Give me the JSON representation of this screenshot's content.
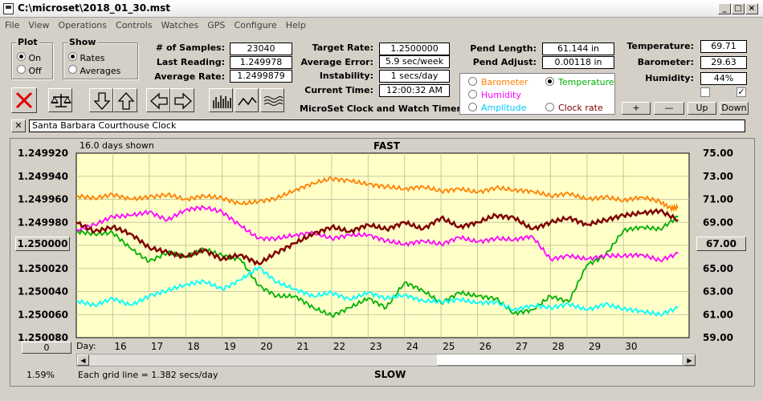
{
  "window": {
    "title": "C:\\microset\\2018_01_30.mst"
  },
  "menu": [
    "File",
    "View",
    "Operations",
    "Controls",
    "Watches",
    "GPS",
    "Configure",
    "Help"
  ],
  "plot_group": {
    "title": "Plot",
    "on": "On",
    "off": "Off",
    "selected": "On"
  },
  "show_group": {
    "title": "Show",
    "rates": "Rates",
    "averages": "Averages",
    "selected": "Rates"
  },
  "stats": {
    "samples_label": "# of Samples:",
    "samples": "23040",
    "last_reading_label": "Last Reading:",
    "last_reading": "1.249978",
    "average_rate_label": "Average Rate:",
    "average_rate": "1.2499879",
    "target_rate_label": "Target Rate:",
    "target_rate": "1.2500000",
    "average_error_label": "Average Error:",
    "average_error": "5.9 sec/week",
    "instability_label": "Instability:",
    "instability": "1 secs/day",
    "current_time_label": "Current Time:",
    "current_time": "12:00:32 AM",
    "pend_length_label": "Pend Length:",
    "pend_length": "61.144 in",
    "pend_adjust_label": "Pend Adjust:",
    "pend_adjust": "0.00118 in",
    "temperature_label": "Temperature:",
    "temperature": "69.71",
    "barometer_label": "Barometer:",
    "barometer": "29.63",
    "humidity_label": "Humidity:",
    "humidity": "44%"
  },
  "app_caption": "MicroSet Clock and Watch Timer",
  "legend": {
    "barometer": "Barometer",
    "temperature": "Temperature",
    "humidity": "Humidity",
    "amplitude": "Amplitude",
    "clock_rate": "Clock rate",
    "selected": "Temperature"
  },
  "adjust_buttons": {
    "plus": "+",
    "minus": "—",
    "up": "Up",
    "down": "Down"
  },
  "clock_name": "Santa Barbara Courthouse Clock",
  "colors": {
    "chart_bg": "#ffffc8",
    "grid": "#000000",
    "barometer": "#ff8000",
    "temperature": "#00b000",
    "humidity": "#ff00ff",
    "amplitude": "#00ffff",
    "clock_rate": "#800000"
  },
  "chart": {
    "days_shown": "16.0 days shown",
    "top_label": "FAST",
    "bottom_label": "SLOW",
    "day_label": "Day:",
    "grid_note": "Each grid line = 1.382 secs/day",
    "left_box": "1.250000",
    "right_box": "67.00",
    "left_button": "0",
    "percent": "1.59%"
  },
  "chart_data": {
    "type": "line",
    "x_label": "Day:",
    "x_ticks": [
      "16",
      "17",
      "18",
      "19",
      "20",
      "21",
      "22",
      "23",
      "24",
      "25",
      "26",
      "27",
      "28",
      "29",
      "30"
    ],
    "xlim": [
      15,
      31.8
    ],
    "y_left_ticks": [
      "1.249920",
      "1.249940",
      "1.249960",
      "1.249980",
      "1.250000",
      "1.250020",
      "1.250040",
      "1.250060",
      "1.250080"
    ],
    "y_left_range": [
      1.25008,
      1.24992
    ],
    "y_right_ticks": [
      "75.00",
      "73.00",
      "71.00",
      "69.00",
      "67.00",
      "65.00",
      "63.00",
      "61.00",
      "59.00"
    ],
    "y_right_range": [
      59,
      75
    ],
    "series": [
      {
        "name": "Barometer",
        "x": [
          15,
          15.5,
          16,
          16.5,
          17,
          17.5,
          18,
          18.5,
          19,
          19.5,
          20,
          20.5,
          21,
          21.5,
          22,
          22.5,
          23,
          23.5,
          24,
          24.5,
          25,
          25.5,
          26,
          26.5,
          27,
          27.5,
          28,
          28.5,
          29,
          29.5,
          30,
          30.5,
          31,
          31.3,
          31.5
        ],
        "y": [
          71.3,
          71.1,
          71.4,
          71.0,
          71.2,
          71.4,
          71.0,
          71.3,
          71.1,
          70.6,
          70.8,
          71.1,
          71.8,
          72.4,
          72.8,
          72.6,
          72.3,
          72.1,
          71.9,
          72.1,
          71.7,
          71.9,
          71.6,
          72.0,
          71.8,
          71.7,
          71.3,
          71.5,
          71.0,
          71.2,
          70.9,
          71.2,
          70.8,
          70.2,
          70.3
        ]
      },
      {
        "name": "Temperature",
        "x": [
          15,
          15.5,
          16,
          16.5,
          17,
          17.5,
          18,
          18.5,
          19,
          19.5,
          20,
          20.5,
          21,
          21.5,
          22,
          22.5,
          23,
          23.5,
          24,
          24.5,
          25,
          25.5,
          26,
          26.5,
          27,
          27.5,
          28,
          28.5,
          29,
          29.5,
          30,
          30.5,
          31,
          31.5
        ],
        "y": [
          68.2,
          68.0,
          68.1,
          66.7,
          65.6,
          66.4,
          66.0,
          66.7,
          66.1,
          65.8,
          63.5,
          62.6,
          62.6,
          61.6,
          60.9,
          61.6,
          62.4,
          61.6,
          63.8,
          63.1,
          62.0,
          62.9,
          62.6,
          62.4,
          61.1,
          61.4,
          62.6,
          62.1,
          65.3,
          66.1,
          68.3,
          68.6,
          68.4,
          69.5
        ]
      },
      {
        "name": "Humidity",
        "x": [
          15,
          15.5,
          16,
          16.5,
          17,
          17.5,
          18,
          18.5,
          19,
          19.5,
          20,
          20.5,
          21,
          21.5,
          22,
          22.5,
          23,
          23.5,
          24,
          24.5,
          25,
          25.5,
          26,
          26.5,
          27,
          27.5,
          28,
          28.5,
          29,
          29.5,
          30,
          30.5,
          31,
          31.5
        ],
        "y": [
          68.3,
          68.8,
          69.5,
          69.6,
          69.9,
          69.2,
          70.1,
          70.3,
          69.9,
          68.7,
          67.6,
          67.6,
          67.9,
          68.1,
          67.6,
          67.9,
          67.9,
          67.4,
          67.1,
          67.4,
          67.1,
          67.7,
          67.3,
          67.6,
          67.5,
          67.8,
          65.8,
          66.1,
          65.8,
          66.1,
          66.1,
          66.2,
          65.7,
          66.3
        ]
      },
      {
        "name": "Amplitude",
        "x": [
          15,
          15.5,
          16,
          16.5,
          17,
          17.5,
          18,
          18.5,
          19,
          19.5,
          20,
          20.5,
          21,
          21.5,
          22,
          22.5,
          23,
          23.5,
          24,
          24.5,
          25,
          25.5,
          26,
          26.5,
          27,
          27.5,
          28,
          28.5,
          29,
          29.5,
          30,
          30.5,
          31,
          31.5
        ],
        "y": [
          62.2,
          61.8,
          62.4,
          61.8,
          62.6,
          63.1,
          63.6,
          63.9,
          63.2,
          64.0,
          65.1,
          63.8,
          63.2,
          62.6,
          62.9,
          62.3,
          62.9,
          62.4,
          62.7,
          62.2,
          62.1,
          62.3,
          62.0,
          62.1,
          61.4,
          61.8,
          61.6,
          61.9,
          61.4,
          61.9,
          61.5,
          61.3,
          61.0,
          61.6
        ]
      },
      {
        "name": "Clock rate",
        "x": [
          15,
          15.5,
          16,
          16.5,
          17,
          17.5,
          18,
          18.5,
          19,
          19.5,
          20,
          20.5,
          21,
          21.5,
          22,
          22.5,
          23,
          23.5,
          24,
          24.5,
          25,
          25.5,
          26,
          26.5,
          27,
          27.5,
          28,
          28.5,
          29,
          29.5,
          30,
          30.5,
          31,
          31.5
        ],
        "y": [
          1.24998,
          1.249988,
          1.249984,
          1.24999,
          1.250002,
          1.250006,
          1.25001,
          1.250004,
          1.250012,
          1.250008,
          1.250016,
          1.250006,
          1.249998,
          1.24999,
          1.249984,
          1.249988,
          1.249982,
          1.249986,
          1.24998,
          1.249986,
          1.249976,
          1.249984,
          1.24998,
          1.249974,
          1.249976,
          1.249986,
          1.24998,
          1.249976,
          1.249982,
          1.249978,
          1.249974,
          1.249972,
          1.24997,
          1.249978
        ]
      }
    ]
  }
}
